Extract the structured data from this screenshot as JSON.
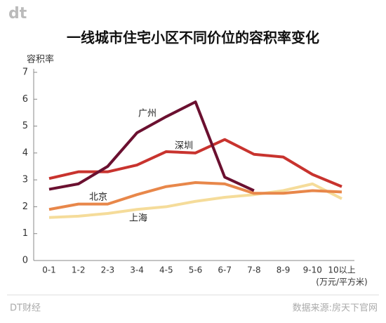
{
  "logo": "dt",
  "footer": {
    "brand": "DT财经",
    "source": "数据来源:房天下官网"
  },
  "chart_data": {
    "type": "line",
    "title": "一线城市住宅小区不同价位的容积率变化",
    "y_label": "容积率",
    "x_label": "(万元/平方米)",
    "categories": [
      "0-1",
      "1-2",
      "2-3",
      "3-4",
      "4-5",
      "5-6",
      "6-7",
      "7-8",
      "8-9",
      "9-10",
      "10以上"
    ],
    "series": [
      {
        "name": "广州",
        "color": "#6b1030",
        "values": [
          2.65,
          2.85,
          3.5,
          4.75,
          5.35,
          5.9,
          3.1,
          2.6,
          null,
          null,
          null
        ]
      },
      {
        "name": "深圳",
        "color": "#c8332e",
        "values": [
          3.05,
          3.3,
          3.3,
          3.55,
          4.05,
          4.0,
          4.5,
          3.95,
          3.85,
          3.2,
          2.75
        ]
      },
      {
        "name": "北京",
        "color": "#e8874a",
        "values": [
          1.9,
          2.1,
          2.1,
          2.45,
          2.75,
          2.9,
          2.85,
          2.5,
          2.5,
          2.6,
          2.55
        ]
      },
      {
        "name": "上海",
        "color": "#f5dc9a",
        "values": [
          1.6,
          1.65,
          1.75,
          1.9,
          2.0,
          2.2,
          2.35,
          2.45,
          2.6,
          2.85,
          2.3
        ]
      }
    ],
    "ylim": [
      0,
      7
    ],
    "yticks": [
      0,
      1,
      2,
      3,
      4,
      5,
      6,
      7
    ],
    "grid": false
  }
}
